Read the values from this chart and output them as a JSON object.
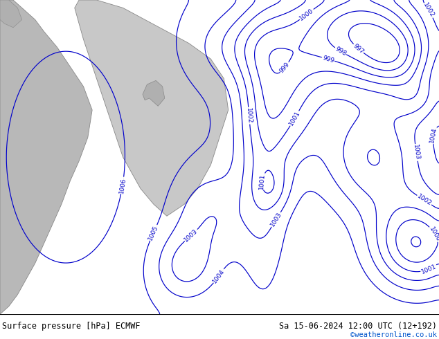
{
  "title_left": "Surface pressure [hPa] ECMWF",
  "title_right": "Sa 15-06-2024 12:00 UTC (12+192)",
  "watermark": "©weatheronline.co.uk",
  "bg_color": "#b3e87a",
  "sea_color": "#c8c8c8",
  "land_left_color": "#aaaaaa",
  "contour_color": "#0000cc",
  "coast_color": "#888888",
  "title_color": "#000000",
  "watermark_color": "#0055cc",
  "figsize": [
    6.34,
    4.9
  ],
  "dpi": 100,
  "bottom_bar_color": "#ffffff",
  "bottom_bar_height": 0.073
}
